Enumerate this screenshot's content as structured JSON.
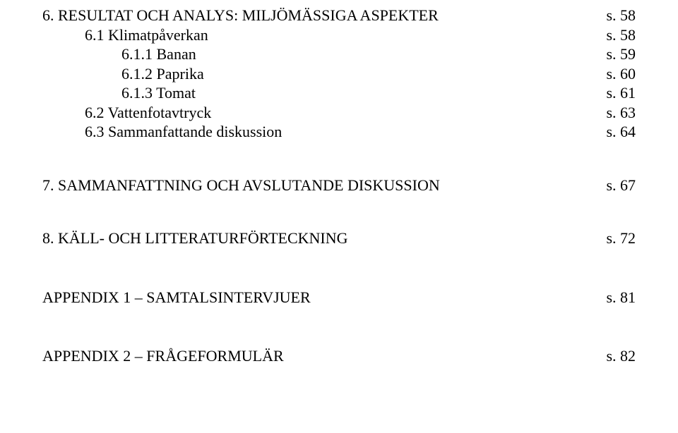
{
  "font": {
    "family": "Times New Roman",
    "size_pt": 16,
    "color": "#000000"
  },
  "background_color": "#ffffff",
  "sections": [
    {
      "num": "6.",
      "title": "RESULTAT OCH ANALYS: MILJÖMÄSSIGA ASPEKTER",
      "page": "s. 58",
      "indent": 0,
      "gap_class": "",
      "children": [
        {
          "num": "6.1",
          "title": "Klimatpåverkan",
          "page": "s. 58",
          "indent": 1,
          "children": [
            {
              "num": "6.1.1",
              "title": "Banan",
              "page": "s. 59",
              "indent": 2
            },
            {
              "num": "6.1.2",
              "title": "Paprika",
              "page": "s. 60",
              "indent": 2
            },
            {
              "num": "6.1.3",
              "title": "Tomat",
              "page": "s. 61",
              "indent": 2
            }
          ]
        },
        {
          "num": "6.2",
          "title": "Vattenfotavtryck",
          "page": "s. 63",
          "indent": 1
        },
        {
          "num": "6.3",
          "title": "Sammanfattande diskussion",
          "page": "s. 64",
          "indent": 1
        }
      ]
    },
    {
      "num": "7.",
      "title": "SAMMANFATTNING OCH AVSLUTANDE DISKUSSION",
      "page": "s. 67",
      "indent": 0,
      "gap_class": "gap-lg"
    },
    {
      "num": "8.",
      "title": "KÄLL- OCH LITTERATURFÖRTECKNING",
      "page": "s. 72",
      "indent": 0,
      "gap_class": "gap-lg"
    },
    {
      "num": "",
      "title": "APPENDIX 1 – SAMTALSINTERVJUER",
      "page": "s. 81",
      "indent": 0,
      "gap_class": "gap-xl"
    },
    {
      "num": "",
      "title": "APPENDIX 2 – FRÅGEFORMULÄR",
      "page": "s. 82",
      "indent": 0,
      "gap_class": "gap-xl"
    }
  ]
}
